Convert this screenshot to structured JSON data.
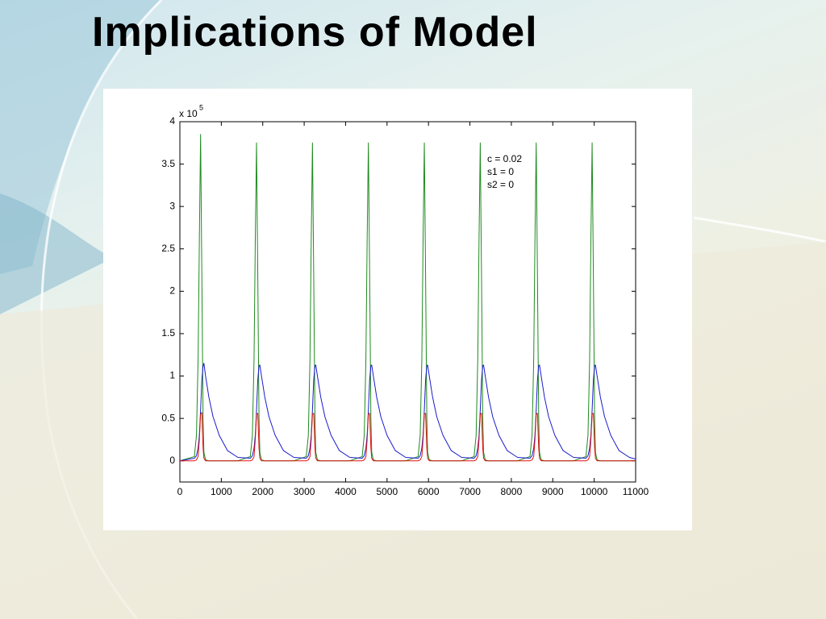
{
  "title": "Implications of Model",
  "chart_data": {
    "type": "line",
    "x": [
      0,
      350,
      400,
      440,
      470,
      500,
      530,
      560,
      580,
      620,
      700,
      800,
      950,
      1150,
      1400,
      1700,
      1750,
      1790,
      1820,
      1850,
      1880,
      1910,
      1930,
      1970,
      2050,
      2150,
      2300,
      2500,
      2750,
      3050,
      3100,
      3140,
      3170,
      3200,
      3230,
      3260,
      3280,
      3320,
      3400,
      3500,
      3650,
      3850,
      4100,
      4400,
      4450,
      4490,
      4520,
      4550,
      4580,
      4610,
      4630,
      4670,
      4750,
      4850,
      5000,
      5200,
      5450,
      5750,
      5800,
      5840,
      5870,
      5900,
      5930,
      5960,
      5980,
      6020,
      6100,
      6200,
      6350,
      6550,
      6800,
      7100,
      7150,
      7190,
      7220,
      7250,
      7280,
      7310,
      7330,
      7370,
      7450,
      7550,
      7700,
      7900,
      8150,
      8450,
      8500,
      8540,
      8570,
      8600,
      8630,
      8660,
      8680,
      8720,
      8800,
      8900,
      9050,
      9250,
      9500,
      9800,
      9850,
      9890,
      9920,
      9950,
      9980,
      10010,
      10030,
      10070,
      10150,
      10250,
      10400,
      10600,
      10850,
      11000
    ],
    "series": [
      {
        "color": "#1f8a1f",
        "values": [
          0,
          0.05,
          0.3,
          1.2,
          2.6,
          3.85,
          2.2,
          0.5,
          0.1,
          0.01,
          0,
          0,
          0,
          0,
          0,
          0.05,
          0.3,
          1.2,
          2.6,
          3.75,
          2.2,
          0.5,
          0.1,
          0.01,
          0,
          0,
          0,
          0,
          0,
          0.05,
          0.3,
          1.2,
          2.6,
          3.75,
          2.2,
          0.5,
          0.1,
          0.01,
          0,
          0,
          0,
          0,
          0,
          0.05,
          0.3,
          1.2,
          2.6,
          3.75,
          2.2,
          0.5,
          0.1,
          0.01,
          0,
          0,
          0,
          0,
          0,
          0.05,
          0.3,
          1.2,
          2.6,
          3.75,
          2.2,
          0.5,
          0.1,
          0.01,
          0,
          0,
          0,
          0,
          0,
          0.05,
          0.3,
          1.2,
          2.6,
          3.75,
          2.2,
          0.5,
          0.1,
          0.01,
          0,
          0,
          0,
          0,
          0,
          0.05,
          0.3,
          1.2,
          2.6,
          3.75,
          2.2,
          0.5,
          0.1,
          0.01,
          0,
          0,
          0,
          0,
          0,
          0.05,
          0.3,
          1.2,
          2.6,
          3.75,
          2.2,
          0.5,
          0.1,
          0.01,
          0,
          0,
          0,
          0,
          0,
          0
        ]
      },
      {
        "color": "#1a1acc",
        "values": [
          0,
          0.03,
          0.06,
          0.15,
          0.3,
          0.6,
          0.95,
          1.12,
          1.15,
          1.0,
          0.75,
          0.52,
          0.3,
          0.12,
          0.04,
          0.03,
          0.06,
          0.15,
          0.3,
          0.6,
          0.95,
          1.12,
          1.13,
          1.0,
          0.75,
          0.52,
          0.3,
          0.12,
          0.04,
          0.03,
          0.06,
          0.15,
          0.3,
          0.6,
          0.95,
          1.12,
          1.13,
          1.0,
          0.75,
          0.52,
          0.3,
          0.12,
          0.04,
          0.03,
          0.06,
          0.15,
          0.3,
          0.6,
          0.95,
          1.12,
          1.13,
          1.0,
          0.75,
          0.52,
          0.3,
          0.12,
          0.04,
          0.03,
          0.06,
          0.15,
          0.3,
          0.6,
          0.95,
          1.12,
          1.13,
          1.0,
          0.75,
          0.52,
          0.3,
          0.12,
          0.04,
          0.03,
          0.06,
          0.15,
          0.3,
          0.6,
          0.95,
          1.12,
          1.13,
          1.0,
          0.75,
          0.52,
          0.3,
          0.12,
          0.04,
          0.03,
          0.06,
          0.15,
          0.3,
          0.6,
          0.95,
          1.12,
          1.13,
          1.0,
          0.75,
          0.52,
          0.3,
          0.12,
          0.04,
          0.03,
          0.06,
          0.15,
          0.3,
          0.6,
          0.95,
          1.12,
          1.13,
          1.0,
          0.75,
          0.52,
          0.3,
          0.12,
          0.04,
          0.02
        ]
      },
      {
        "color": "#e01010",
        "values": [
          0,
          0,
          0.01,
          0.05,
          0.25,
          0.55,
          0.57,
          0.15,
          0.03,
          0,
          0,
          0,
          0,
          0,
          0,
          0,
          0.01,
          0.05,
          0.25,
          0.55,
          0.56,
          0.15,
          0.03,
          0,
          0,
          0,
          0,
          0,
          0,
          0,
          0.01,
          0.05,
          0.25,
          0.55,
          0.56,
          0.15,
          0.03,
          0,
          0,
          0,
          0,
          0,
          0,
          0,
          0.01,
          0.05,
          0.25,
          0.55,
          0.56,
          0.15,
          0.03,
          0,
          0,
          0,
          0,
          0,
          0,
          0,
          0.01,
          0.05,
          0.25,
          0.55,
          0.56,
          0.15,
          0.03,
          0,
          0,
          0,
          0,
          0,
          0,
          0,
          0.01,
          0.05,
          0.25,
          0.55,
          0.56,
          0.15,
          0.03,
          0,
          0,
          0,
          0,
          0,
          0,
          0,
          0.01,
          0.05,
          0.25,
          0.55,
          0.56,
          0.15,
          0.03,
          0,
          0,
          0,
          0,
          0,
          0,
          0,
          0.01,
          0.05,
          0.25,
          0.55,
          0.56,
          0.15,
          0.03,
          0,
          0,
          0,
          0,
          0,
          0,
          0
        ]
      }
    ],
    "xlim": [
      0,
      11000
    ],
    "xticks": [
      0,
      1000,
      2000,
      3000,
      4000,
      5000,
      6000,
      7000,
      8000,
      9000,
      10000,
      11000
    ],
    "ylim": [
      -0.25,
      4
    ],
    "yticks": [
      0,
      0.5,
      1,
      1.5,
      2,
      2.5,
      3,
      3.5,
      4
    ],
    "y_multiplier": {
      "text": "x 10",
      "exponent": "5"
    },
    "annotations": [
      "c = 0.02",
      "s1 = 0",
      "s2 = 0"
    ]
  }
}
